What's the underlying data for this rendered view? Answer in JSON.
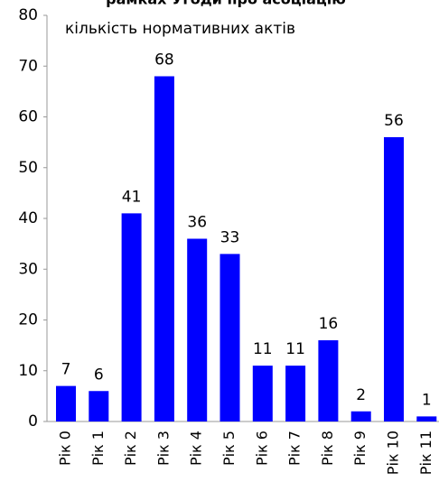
{
  "chart_data": {
    "type": "bar",
    "title": "рамках Угоди про асоціацію",
    "y_label": "кількість нормативних актів",
    "categories": [
      "Рік 0",
      "Рік 1",
      "Рік 2",
      "Рік 3",
      "Рік 4",
      "Рік 5",
      "Рік 6",
      "Рік 7",
      "Рік 8",
      "Рік 9",
      "Рік 10",
      "Рік 11"
    ],
    "values": [
      7,
      6,
      41,
      68,
      36,
      33,
      11,
      11,
      16,
      2,
      56,
      1
    ],
    "color": "#0000ff",
    "ylim": [
      0,
      80
    ],
    "yticks": [
      0,
      10,
      20,
      30,
      40,
      50,
      60,
      70,
      80
    ]
  }
}
